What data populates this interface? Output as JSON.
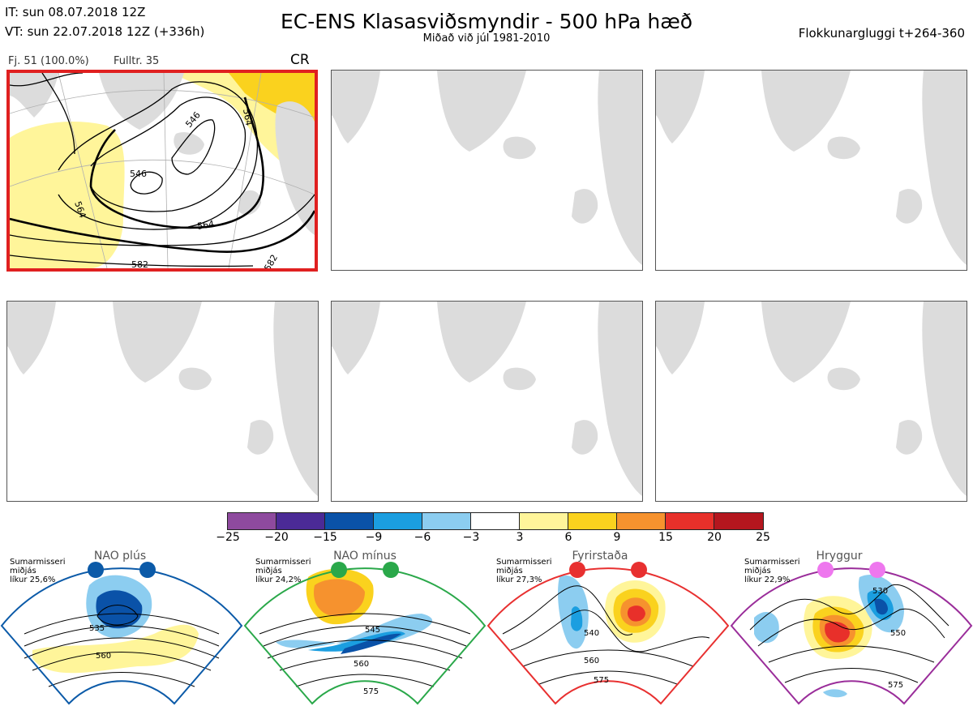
{
  "header": {
    "it_line": "IT: sun 08.07.2018 12Z",
    "vt_line": "VT: sun 22.07.2018 12Z  (+336h)",
    "title": "EC-ENS Klasasviðsmyndir - 500 hPa hæð",
    "subtitle": "Miðað við júl 1981-2010",
    "window": "Flokkunargluggi t+264-360"
  },
  "cluster_panel": {
    "members_label": "Fj. 51 (100.0%)",
    "rep_label": "Fulltr. 35",
    "class_code": "CR",
    "contour_labels": [
      "546",
      "546",
      "564",
      "564",
      "582",
      "582",
      "564"
    ]
  },
  "empty_panels": [
    "panel-2",
    "panel-3",
    "panel-4",
    "panel-5",
    "panel-6"
  ],
  "colorbar": {
    "ticks": [
      "−25",
      "−20",
      "−15",
      "−9",
      "−6",
      "−3",
      "3",
      "6",
      "9",
      "15",
      "20",
      "25"
    ],
    "colors": [
      "#8e4a9e",
      "#4b2a96",
      "#0a52a8",
      "#1b9ee0",
      "#8ccdf0",
      "#ffffff",
      "#fff59a",
      "#fad21e",
      "#f6922e",
      "#e8302a",
      "#b4161e"
    ]
  },
  "regimes": [
    {
      "name": "NAO plús",
      "note1": "Sumarmisseri",
      "note2": "miðjás",
      "note3": "líkur 25,6%",
      "color": "#0b5aa8",
      "labels": [
        "535",
        "560"
      ]
    },
    {
      "name": "NAO mínus",
      "note1": "Sumarmisseri",
      "note2": "miðjás",
      "note3": "líkur 24,2%",
      "color": "#2aa84a",
      "labels": [
        "545",
        "560",
        "575"
      ]
    },
    {
      "name": "Fyrirstaða",
      "note1": "Sumarmisseri",
      "note2": "miðjás",
      "note3": "líkur 27,3%",
      "color": "#e83030",
      "labels": [
        "540",
        "560",
        "575"
      ]
    },
    {
      "name": "Hryggur",
      "note1": "Sumarmisseri",
      "note2": "miðjás",
      "note3": "líkur 22,9%",
      "color": "#9a2d9a",
      "labels": [
        "530",
        "550",
        "575"
      ]
    }
  ]
}
